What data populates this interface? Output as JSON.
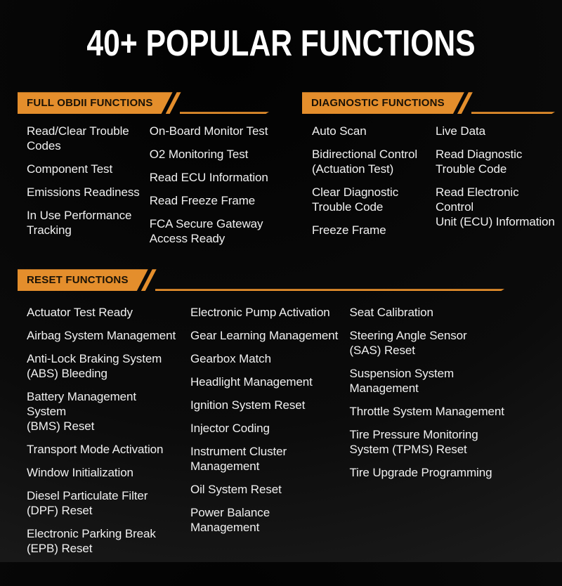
{
  "title": "40+ POPULAR FUNCTIONS",
  "colors": {
    "accent": "#E48E2C",
    "background": "#0B0B0B",
    "banner_text": "#1A1206",
    "body_text": "#F0F0F0",
    "title_text": "#FFFFFF"
  },
  "sections": [
    {
      "id": "full-obdii",
      "label": "FULL OBDII FUNCTIONS",
      "columns": [
        [
          "Read/Clear Trouble\nCodes",
          "Component Test",
          "Emissions Readiness",
          "In Use Performance\nTracking"
        ],
        [
          "On-Board Monitor Test",
          "O2 Monitoring Test",
          "Read ECU Information",
          "Read Freeze Frame",
          "FCA Secure Gateway\nAccess Ready"
        ]
      ]
    },
    {
      "id": "diagnostic",
      "label": "DIAGNOSTIC FUNCTIONS",
      "columns": [
        [
          "Auto Scan",
          "Bidirectional Control\n(Actuation Test)",
          "Clear Diagnostic\nTrouble Code",
          "Freeze Frame"
        ],
        [
          "Live Data",
          "Read Diagnostic\nTrouble Code",
          "Read Electronic Control\nUnit (ECU) Information"
        ]
      ]
    },
    {
      "id": "reset",
      "label": "RESET FUNCTIONS",
      "columns": [
        [
          "Actuator Test Ready",
          "Airbag System Management",
          "Anti-Lock Braking System\n(ABS) Bleeding",
          "Battery Management System\n(BMS) Reset",
          "Transport Mode Activation",
          "Window Initialization",
          "Diesel Particulate Filter\n(DPF) Reset",
          "Electronic Parking Break\n(EPB) Reset"
        ],
        [
          "Electronic Pump Activation",
          "Gear Learning Management",
          "Gearbox Match",
          "Headlight Management",
          "Ignition System Reset",
          "Injector Coding",
          "Instrument Cluster\nManagement",
          "Oil System Reset",
          "Power Balance Management"
        ],
        [
          "Seat Calibration",
          "Steering Angle Sensor\n(SAS) Reset",
          "Suspension System\nManagement",
          "Throttle System Management",
          "Tire Pressure Monitoring\nSystem (TPMS) Reset",
          "Tire Upgrade Programming"
        ]
      ]
    }
  ]
}
